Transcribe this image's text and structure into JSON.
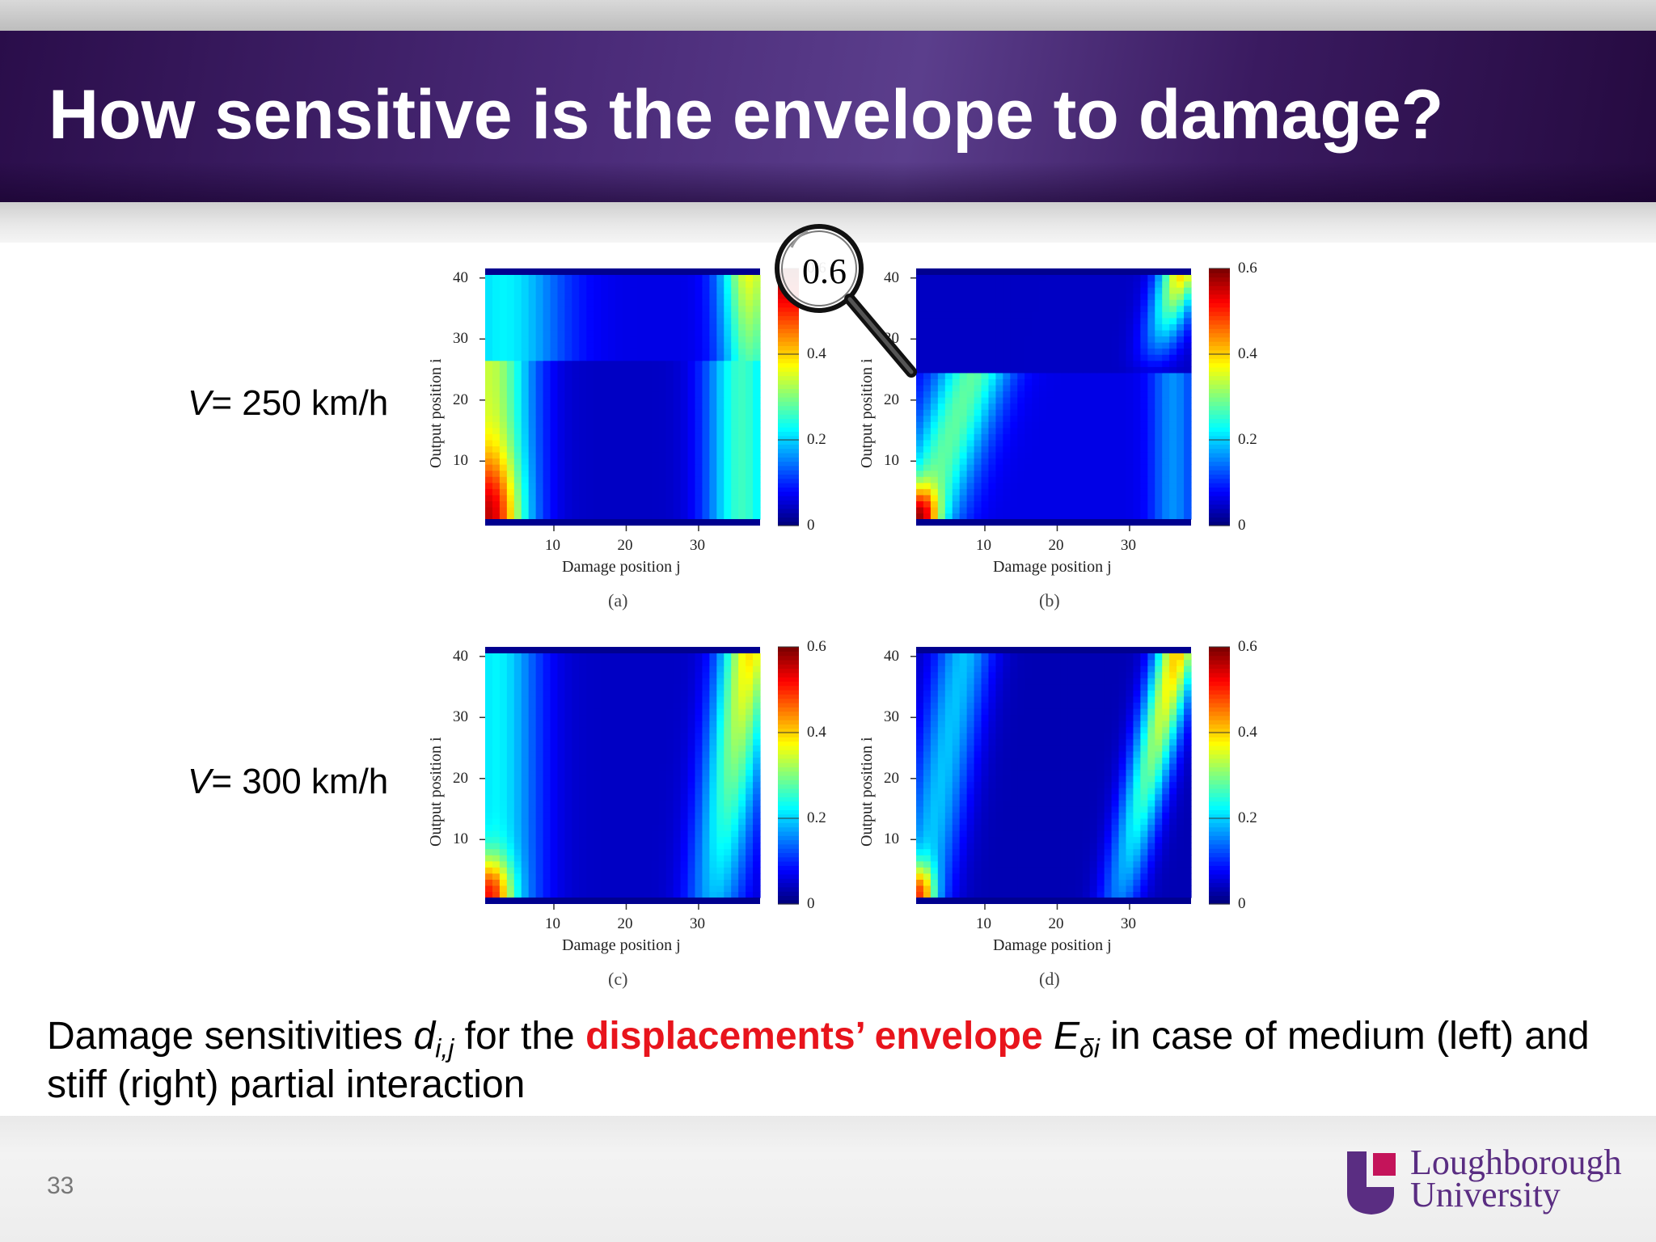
{
  "slide": {
    "title": "How sensitive is the envelope to damage?",
    "page_number": "33"
  },
  "rows": [
    {
      "speed_symbol": "V",
      "speed_value": "= 250 km/h"
    },
    {
      "speed_symbol": "V",
      "speed_value": "= 300 km/h"
    }
  ],
  "figure": {
    "y_axis_label": "Output position i",
    "x_axis_label": "Damage position j",
    "y_ticks": [
      "10",
      "20",
      "30",
      "40"
    ],
    "x_ticks": [
      "10",
      "20",
      "30"
    ],
    "colorbar_ticks": [
      "0",
      "0.2",
      "0.4",
      "0.6"
    ],
    "panels": [
      {
        "label": "(a)"
      },
      {
        "label": "(b)"
      },
      {
        "label": "(c)"
      },
      {
        "label": "(d)"
      }
    ],
    "magnifier_value": "0.6"
  },
  "caption": {
    "text1": "Damage sensitivities ",
    "var_d": "d",
    "sub_d": "i,j",
    "text2": " for the ",
    "highlight": "displacements’ envelope",
    "text3": " ",
    "var_e": "E",
    "sub_e": "δi",
    "text4": " in case of medium (left) and stiff (right) partial interaction"
  },
  "logo": {
    "line1": "Loughborough",
    "line2": "University"
  },
  "colors": {
    "header_purple": "#3a1a60",
    "highlight_red": "#e8141c",
    "logo_purple": "#5a2d82",
    "logo_pink": "#c4145a"
  }
}
